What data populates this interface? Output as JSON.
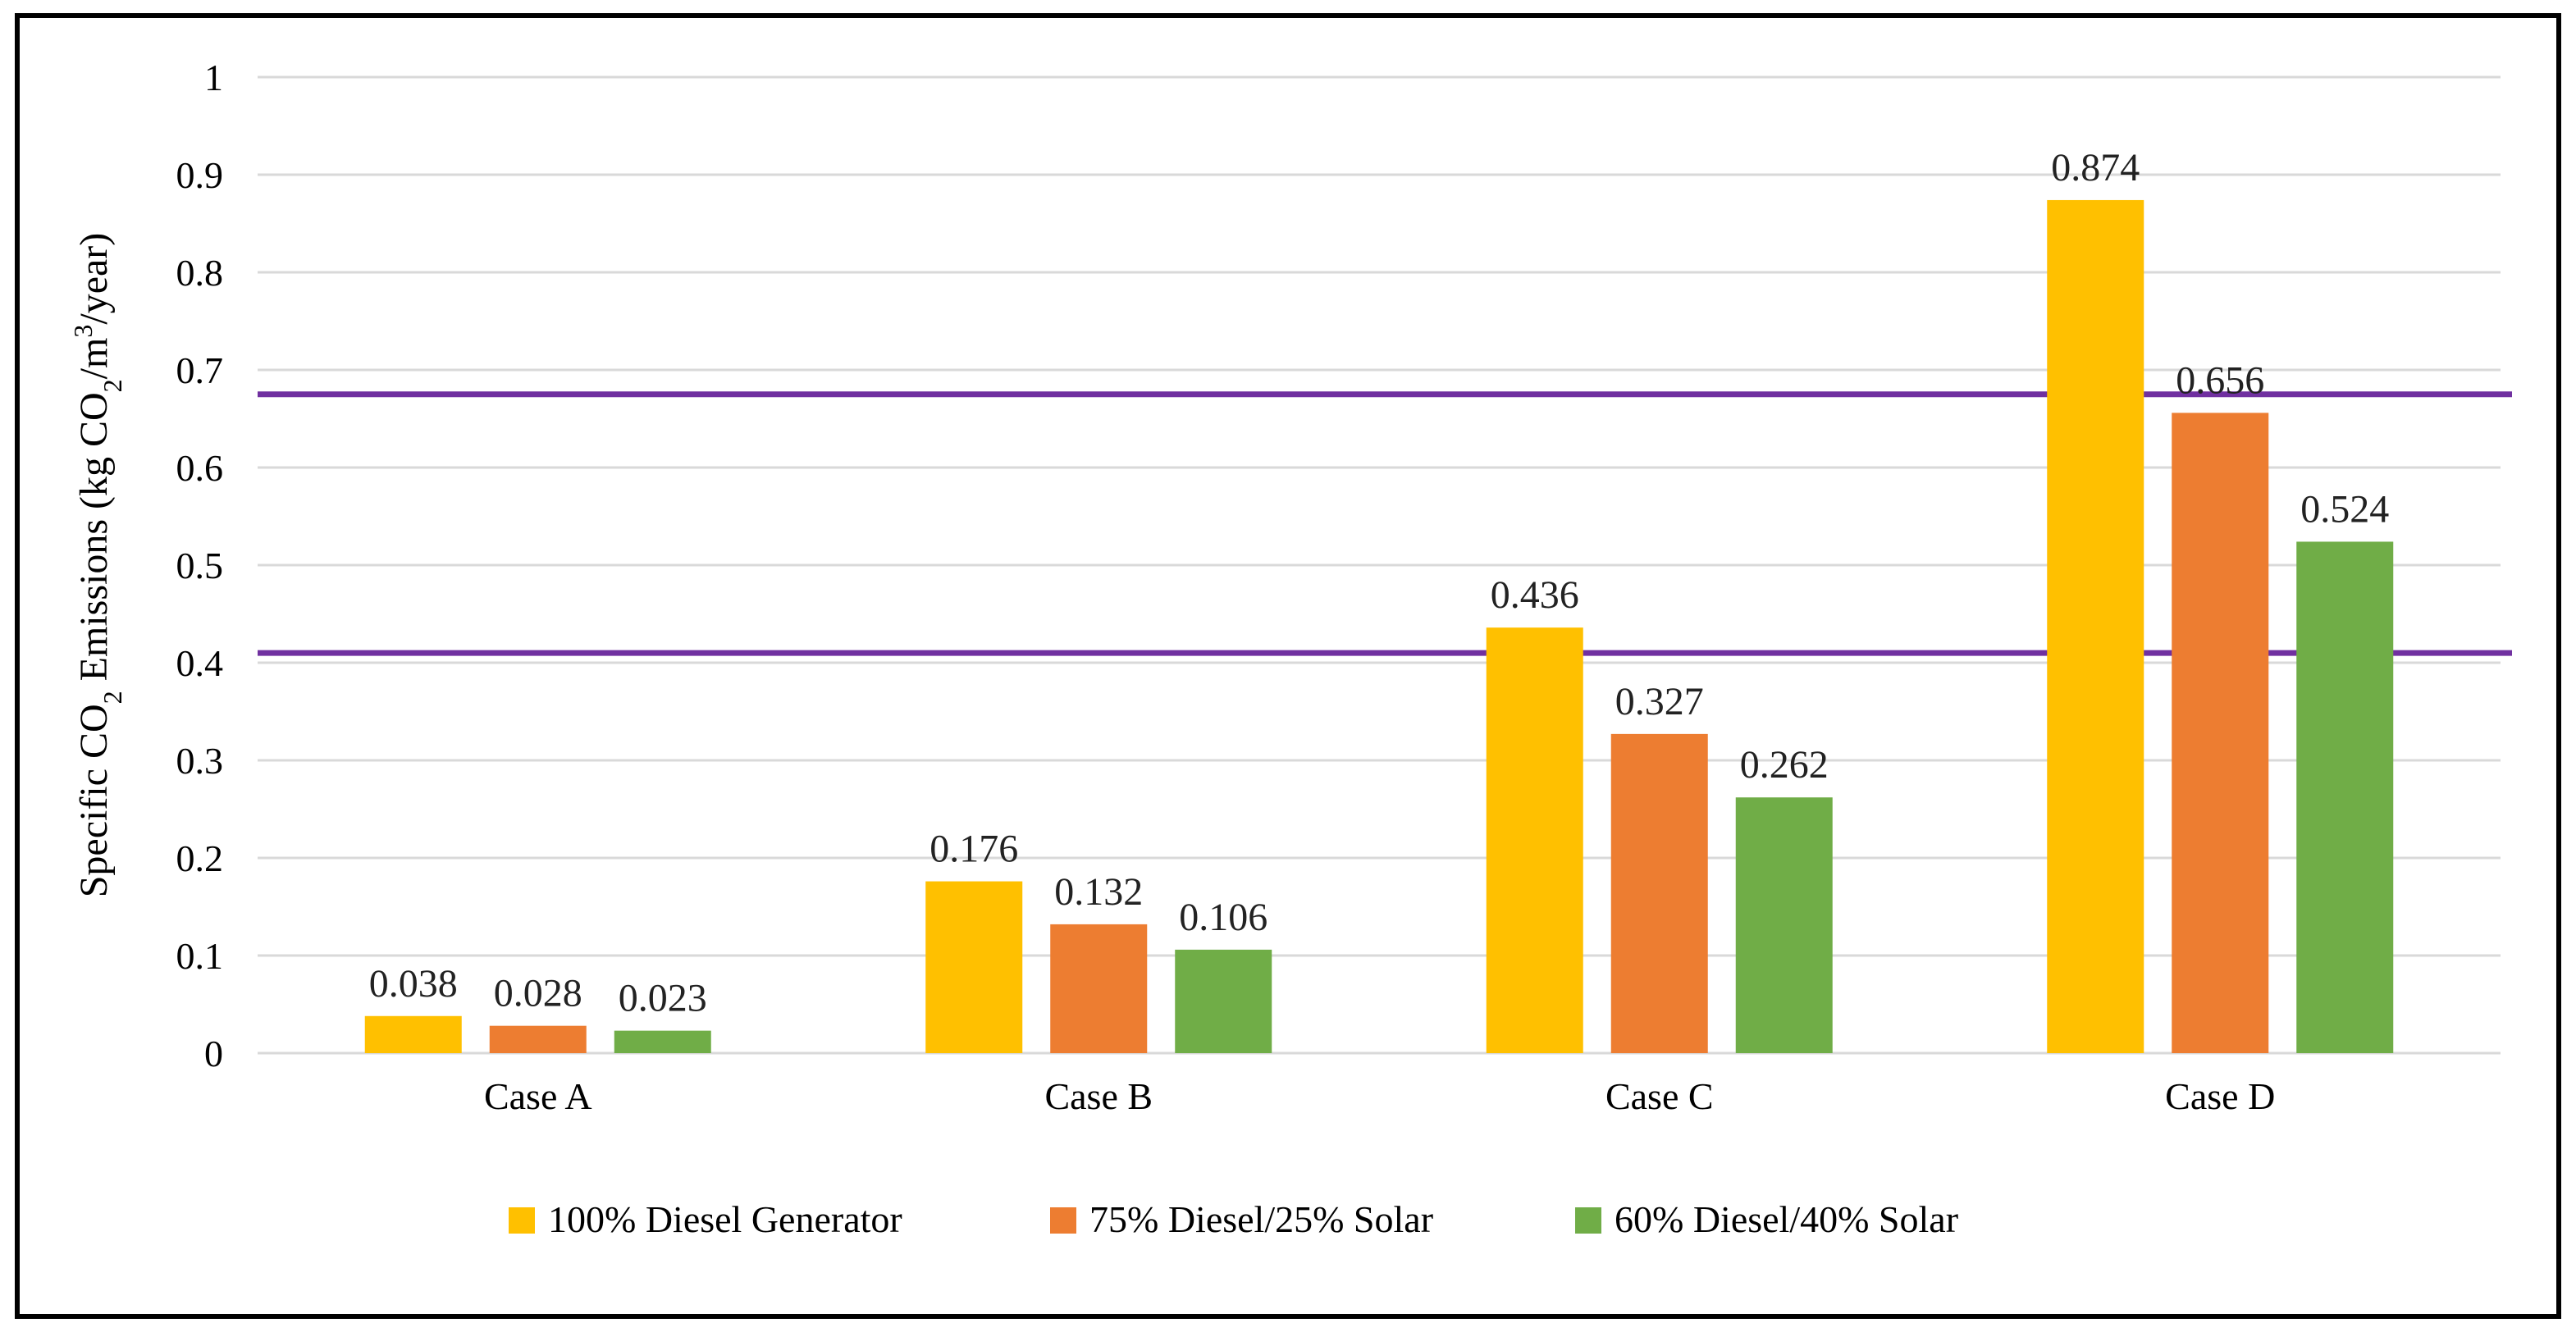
{
  "chart_data": {
    "type": "bar",
    "categories": [
      "Case A",
      "Case B",
      "Case C",
      "Case D"
    ],
    "series": [
      {
        "name": "100% Diesel Generator",
        "color": "#FFC000",
        "values": [
          0.038,
          0.176,
          0.436,
          0.874
        ],
        "labels": [
          "0.038",
          "0.176",
          "0.436",
          "0.874"
        ]
      },
      {
        "name": "75% Diesel/25% Solar",
        "color": "#ED7D31",
        "values": [
          0.028,
          0.132,
          0.327,
          0.656
        ],
        "labels": [
          "0.028",
          "0.132",
          "0.327",
          "0.656"
        ]
      },
      {
        "name": "60% Diesel/40% Solar",
        "color": "#70AD47",
        "values": [
          0.023,
          0.106,
          0.262,
          0.524
        ],
        "labels": [
          "0.023",
          "0.106",
          "0.262",
          "0.524"
        ]
      }
    ],
    "ylabel": {
      "part1": "Specific CO",
      "sub1": "2",
      "part2": " Emissions (kg CO",
      "sub2": "2",
      "part3": "/m",
      "sup": "3",
      "part4": "/year)"
    },
    "ylim": [
      0,
      1
    ],
    "yticks": [
      "0",
      "0.1",
      "0.2",
      "0.3",
      "0.4",
      "0.5",
      "0.6",
      "0.7",
      "0.8",
      "0.9",
      "1"
    ],
    "grid": true,
    "legend": "bottom",
    "reference_lines": [
      {
        "value": 0.41,
        "color": "#7030A0"
      },
      {
        "value": 0.675,
        "color": "#7030A0"
      }
    ],
    "gridline_color": "#D9D9D9"
  }
}
